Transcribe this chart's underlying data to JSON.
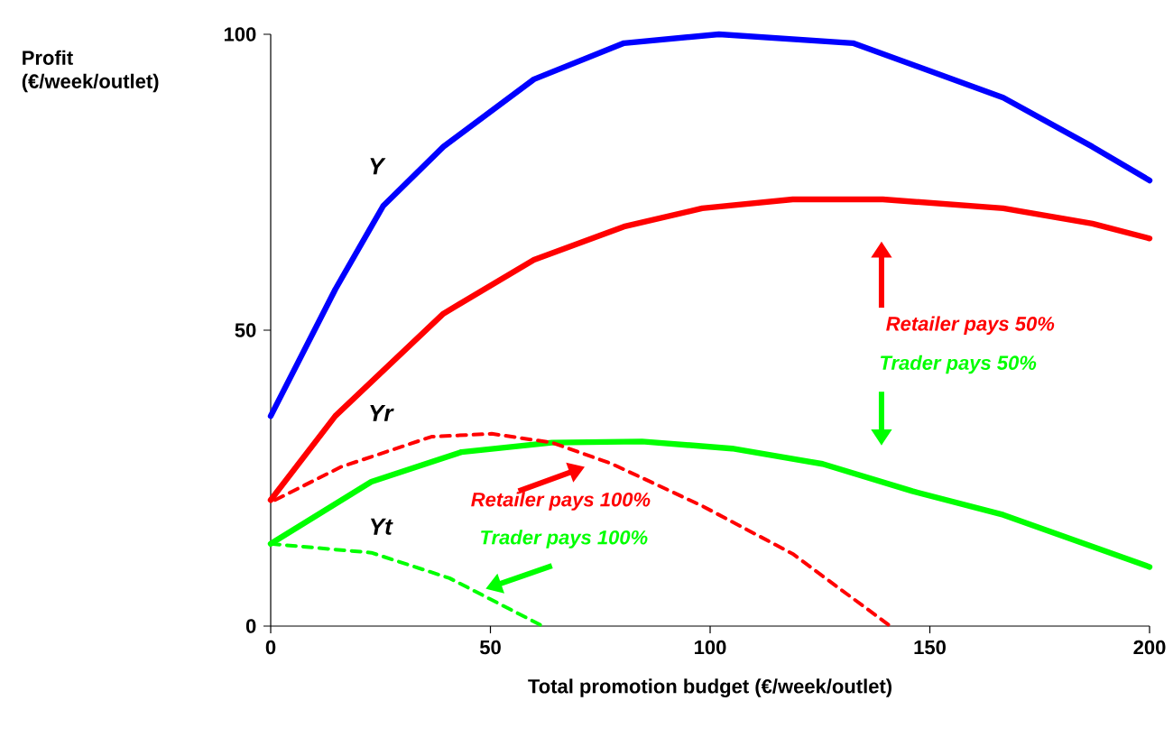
{
  "chart_data": {
    "type": "line",
    "xlabel": "Total promotion budget (€/week/outlet)",
    "ylabel": "Profit (€/week/outlet)",
    "xlim": [
      0,
      200
    ],
    "ylim": [
      0,
      100
    ],
    "xticks": [
      0,
      50,
      100,
      150,
      200
    ],
    "yticks": [
      0,
      50,
      100
    ],
    "grid": false,
    "legend": false,
    "marker": "none",
    "series": [
      {
        "name": "Y",
        "color": "#0000ff",
        "line_style": "solid",
        "x": [
          0,
          14.7,
          25.6,
          39.3,
          59.9,
          80.4,
          102,
          132.5,
          166.7,
          187,
          200
        ],
        "values": [
          35.5,
          56.9,
          71,
          81,
          92.4,
          98.5,
          100,
          98.5,
          89.3,
          81,
          75.3
        ]
      },
      {
        "name": "Yr",
        "color": "#ff0000",
        "line_style": "solid",
        "x": [
          0,
          14.7,
          39.3,
          59.9,
          80.4,
          98.2,
          118.8,
          139.3,
          166.7,
          187,
          200
        ],
        "values": [
          21.3,
          35.5,
          52.8,
          61.9,
          67.5,
          70.6,
          72.1,
          72.1,
          70.6,
          68,
          65.5
        ]
      },
      {
        "name": "Yt",
        "color": "#00ff00",
        "line_style": "solid",
        "x": [
          0,
          22.9,
          43.4,
          64,
          84.5,
          105,
          125.6,
          146,
          166.7,
          200
        ],
        "values": [
          13.9,
          24.4,
          29.4,
          31,
          31.2,
          30,
          27.4,
          22.8,
          18.8,
          10
        ]
      },
      {
        "color": "#ff0000",
        "line_style": "dashed",
        "x": [
          1,
          16,
          36.6,
          50.3,
          64,
          77.7,
          98.2,
          118.8,
          141
        ],
        "values": [
          21.3,
          26.9,
          32,
          32.5,
          31,
          27.4,
          20.3,
          12.2,
          0
        ]
      },
      {
        "color": "#00ff00",
        "line_style": "dashed",
        "x": [
          0,
          22.9,
          40.7,
          61.9
        ],
        "values": [
          13.9,
          12.4,
          8.1,
          0
        ]
      }
    ],
    "annotations": [
      "Retailer pays  50%",
      "Trader pays 50%",
      "Retailer pays  100%",
      "Trader pays 100%"
    ]
  }
}
